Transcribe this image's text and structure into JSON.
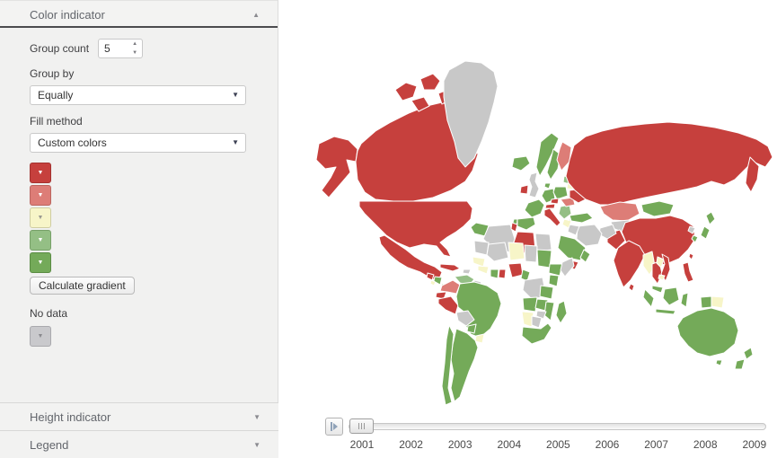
{
  "sidebar": {
    "color_panel": {
      "title": "Color indicator",
      "collapse_arrow": "▲"
    },
    "group_count": {
      "label": "Group count",
      "value": "5",
      "spin_up": "▲",
      "spin_down": "▼"
    },
    "group_by": {
      "label": "Group by",
      "value": "Equally",
      "arrow": "▼"
    },
    "fill_method": {
      "label": "Fill method",
      "value": "Custom colors",
      "arrow": "▼"
    },
    "color_swatches": [
      {
        "color": "#c6403d",
        "border": "#a33330",
        "arrow_color": "#ffffff"
      },
      {
        "color": "#dd7d77",
        "border": "#bb6660",
        "arrow_color": "#ffffff"
      },
      {
        "color": "#f7f5c8",
        "border": "#cfcda2",
        "arrow_color": "#9a9a90"
      },
      {
        "color": "#94bf85",
        "border": "#77a168",
        "arrow_color": "#ffffff"
      },
      {
        "color": "#74aa59",
        "border": "#5a8c43",
        "arrow_color": "#ffffff"
      }
    ],
    "gradient_button_label": "Calculate gradient",
    "no_data_label": "No data",
    "no_data_swatch": {
      "color": "#c9c9cc",
      "border": "#a9a9ad",
      "arrow_color": "#8a8a8e"
    },
    "height_panel": {
      "title": "Height indicator",
      "collapse_arrow": "▼"
    },
    "legend_panel": {
      "title": "Legend",
      "collapse_arrow": "▼"
    }
  },
  "timeline": {
    "years": [
      "2001",
      "2002",
      "2003",
      "2004",
      "2005",
      "2006",
      "2007",
      "2008",
      "2009"
    ],
    "selected_year": "2001"
  },
  "map": {
    "palette": {
      "red": "#c6403d",
      "salmon": "#dd7d77",
      "yellow": "#f7f5c8",
      "lightgreen": "#94bf85",
      "green": "#74aa59",
      "nodata": "#c8c8c8"
    },
    "regions": {
      "alaska": "red",
      "canada": "red",
      "arctic-1": "red",
      "arctic-2": "red",
      "arctic-3": "red",
      "arctic-4": "red",
      "greenland": "nodata",
      "iceland": "green",
      "usa": "red",
      "mexico": "red",
      "cuba": "red",
      "hispaniola": "nodata",
      "guatemala": "red",
      "belize": "yellow",
      "nicaragua": "green",
      "panama": "green",
      "colombia": "salmon",
      "venezuela": "lightgreen",
      "guyana": "nodata",
      "ecuador": "red",
      "peru": "red",
      "brazil": "green",
      "bolivia": "nodata",
      "paraguay": "green",
      "uruguay": "yellow",
      "argentina": "green",
      "chile": "green",
      "ireland": "red",
      "uk": "nodata",
      "norway": "green",
      "sweden": "green",
      "finland": "salmon",
      "baltic": "lightgreen",
      "denmark": "green",
      "france": "green",
      "spain": "green",
      "portugal": "green",
      "germany": "green",
      "poland": "green",
      "czech": "red",
      "austria": "red",
      "italy": "red",
      "balkans": "lightgreen",
      "greece": "green",
      "romania": "salmon",
      "belarus": "yellow",
      "ukraine": "red",
      "turkey": "green",
      "russia": "red",
      "kamchatka": "red",
      "kazakhstan": "salmon",
      "central-asia": "nodata",
      "mongolia": "green",
      "china": "red",
      "north-korea": "nodata",
      "south-korea": "green",
      "japan-north": "green",
      "japan-south": "green",
      "india": "red",
      "pakistan": "red",
      "afghanistan": "nodata",
      "iran": "nodata",
      "iraq": "nodata",
      "saudi-arabia": "green",
      "yemen": "red",
      "oman": "green",
      "syria": "yellow",
      "myanmar": "yellow",
      "thailand": "red",
      "laos": "yellow",
      "vietnam": "red",
      "cambodia": "yellow",
      "malaysia": "green",
      "sumatra": "green",
      "java": "green",
      "borneo": "green",
      "sulawesi": "green",
      "png": "yellow",
      "west-papua": "green",
      "philippines": "red",
      "sri-lanka": "red",
      "taiwan": "red",
      "morocco": "green",
      "algeria": "nodata",
      "tunisia": "red",
      "libya": "red",
      "egypt": "nodata",
      "mauritania": "nodata",
      "mali": "nodata",
      "niger": "yellow",
      "chad": "nodata",
      "sudan": "green",
      "ethiopia": "green",
      "somalia": "nodata",
      "senegal": "yellow",
      "guinea": "yellow",
      "ivory-coast": "green",
      "ghana": "red",
      "nigeria": "red",
      "cameroon": "green",
      "drc": "nodata",
      "kenya": "green",
      "tanzania": "green",
      "angola": "green",
      "zambia": "green",
      "mozambique": "green",
      "zimbabwe": "nodata",
      "namibia": "yellow",
      "botswana": "nodata",
      "south-africa": "green",
      "madagascar": "green",
      "australia": "green",
      "tasmania": "green",
      "nz-north": "green",
      "nz-south": "green"
    }
  }
}
